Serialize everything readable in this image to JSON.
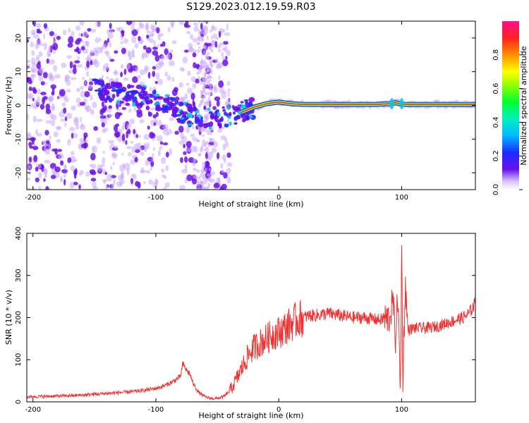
{
  "title": "S129.2023.012.19.59.R03",
  "colors": {
    "snr_line": "#f03232",
    "peak_line": "#e03020",
    "spectro_dot": "#6a10e8",
    "spectro_faint": "#c9a8ff"
  },
  "chart_data": [
    {
      "type": "heatmap",
      "title": "S129.2023.012.19.59.R03",
      "xlabel": "Height of straight line (km)",
      "ylabel": "Frequency (Hz)",
      "xlim": [
        -205,
        160
      ],
      "ylim": [
        -25,
        25
      ],
      "x_ticks": [
        -200,
        -100,
        0,
        100
      ],
      "x_tick_labels": [
        "-200",
        "-100",
        "0",
        "100"
      ],
      "y_ticks": [
        -20,
        -10,
        0,
        10,
        20
      ],
      "y_tick_labels": [
        "-20",
        "-10",
        "0",
        "10",
        "20"
      ],
      "colorbar": {
        "label": "Normalized spectral amplitude",
        "range": [
          0,
          1
        ],
        "ticks": [
          0.0,
          0.2,
          0.4,
          0.6,
          0.8
        ],
        "tick_labels": [
          "0.0",
          "0.2",
          "0.4",
          "0.6",
          "0.8"
        ],
        "colormap": "rainbow (white-violet-blue-cyan-green-yellow-red-magenta)"
      },
      "peak_frequency_track": {
        "x": [
          -150,
          -140,
          -130,
          -120,
          -110,
          -100,
          -90,
          -80,
          -70,
          -60,
          -50,
          -40,
          -30,
          -20,
          -10,
          0,
          10,
          20,
          50,
          80,
          90,
          95,
          100,
          120,
          160
        ],
        "y": [
          5,
          4,
          3.5,
          3,
          2.5,
          1.5,
          0,
          -2,
          -3,
          -3.5,
          -3.5,
          -3.5,
          -2,
          -0.5,
          0.5,
          1,
          0.5,
          0.3,
          0.3,
          0.3,
          0.5,
          0.8,
          0.3,
          0.3,
          0.3
        ]
      },
      "noise_regions": [
        {
          "x": [
            -205,
            -40
          ],
          "y": [
            -25,
            25
          ],
          "level": "diffuse broadband noise"
        }
      ],
      "grid": false
    },
    {
      "type": "line",
      "xlabel": "Height of straight line (km)",
      "ylabel": "SNR (10 * v/v)",
      "xlim": [
        -205,
        160
      ],
      "ylim": [
        0,
        400
      ],
      "x_ticks": [
        -200,
        -100,
        0,
        100
      ],
      "x_tick_labels": [
        "-200",
        "-100",
        "0",
        "100"
      ],
      "y_ticks": [
        0,
        100,
        200,
        300,
        400
      ],
      "y_tick_labels": [
        "0",
        "100",
        "200",
        "300",
        "400"
      ],
      "series": [
        {
          "x": [
            -205,
            -190,
            -175,
            -160,
            -150,
            -140,
            -130,
            -120,
            -110,
            -100,
            -95,
            -90,
            -85,
            -80,
            -78,
            -75,
            -72,
            -70,
            -65,
            -60,
            -55,
            -50,
            -45,
            -40,
            -35,
            -30,
            -25,
            -20,
            -15,
            -10,
            -5,
            0,
            5,
            10,
            15,
            20,
            25,
            30,
            40,
            50,
            60,
            70,
            80,
            85,
            90,
            93,
            95,
            97,
            99,
            100,
            101,
            103,
            105,
            110,
            120,
            130,
            140,
            150,
            155,
            160
          ],
          "y": [
            12,
            13,
            14,
            16,
            18,
            20,
            22,
            24,
            27,
            32,
            36,
            42,
            50,
            60,
            90,
            75,
            65,
            45,
            22,
            12,
            8,
            8,
            12,
            25,
            50,
            80,
            110,
            130,
            140,
            150,
            160,
            165,
            175,
            185,
            195,
            200,
            205,
            205,
            210,
            205,
            200,
            200,
            195,
            195,
            200,
            240,
            150,
            260,
            10,
            390,
            60,
            280,
            170,
            175,
            175,
            180,
            190,
            200,
            210,
            235
          ]
        }
      ],
      "grid": false
    }
  ]
}
